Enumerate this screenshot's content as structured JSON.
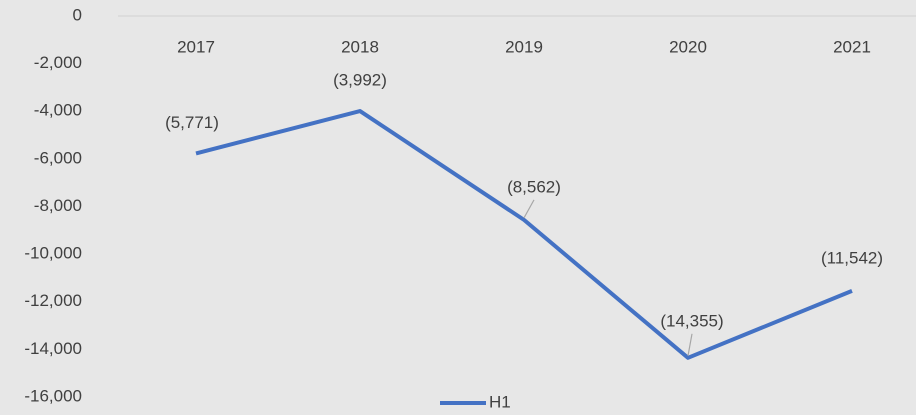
{
  "chart_data": {
    "type": "line",
    "categories": [
      "2017",
      "2018",
      "2019",
      "2020",
      "2021"
    ],
    "series": [
      {
        "name": "H1",
        "color": "#4472c4",
        "values": [
          -5771,
          -3992,
          -8562,
          -14355,
          -11542
        ],
        "value_labels": [
          "(5,771)",
          "(3,992)",
          "(8,562)",
          "(14,355)",
          "(11,542)"
        ]
      }
    ],
    "ylim": [
      -16000,
      0
    ],
    "yticks": [
      0,
      {
        "value": -2000,
        "label": "-2,000"
      },
      {
        "value": -4000,
        "label": "-4,000"
      },
      {
        "value": -6000,
        "label": "-6,000"
      },
      {
        "value": -8000,
        "label": "-8,000"
      },
      {
        "value": -10000,
        "label": "-10,000"
      },
      {
        "value": -12000,
        "label": "-12,000"
      },
      {
        "value": -14000,
        "label": "-14,000"
      },
      {
        "value": -16000,
        "label": "-16,000"
      }
    ],
    "legend": "bottom"
  }
}
